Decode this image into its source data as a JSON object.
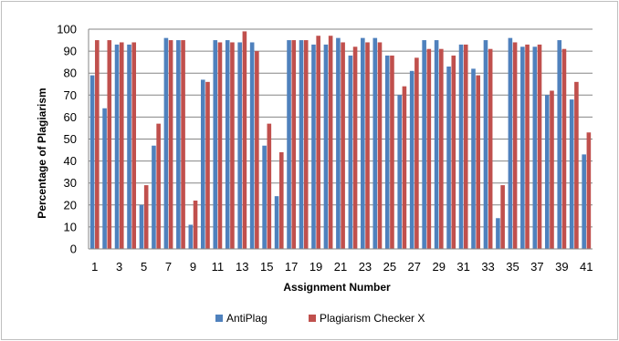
{
  "chart_data": {
    "type": "bar",
    "xlabel": "Assignment Number",
    "ylabel": "Percentage of Plagiarism",
    "ylim": [
      0,
      100
    ],
    "yticks": [
      0,
      10,
      20,
      30,
      40,
      50,
      60,
      70,
      80,
      90,
      100
    ],
    "xtick_labels": [
      "1",
      "3",
      "5",
      "7",
      "9",
      "11",
      "13",
      "15",
      "17",
      "19",
      "21",
      "23",
      "25",
      "27",
      "29",
      "31",
      "33",
      "35",
      "37",
      "39",
      "41"
    ],
    "categories": [
      1,
      2,
      3,
      4,
      5,
      6,
      7,
      8,
      9,
      10,
      11,
      12,
      13,
      14,
      15,
      16,
      17,
      18,
      19,
      20,
      21,
      22,
      23,
      24,
      25,
      26,
      27,
      28,
      29,
      30,
      31,
      32,
      33,
      34,
      35,
      36,
      37,
      38,
      39,
      40,
      41
    ],
    "grid": true,
    "legend_position": "bottom",
    "series": [
      {
        "name": "AntiPlag",
        "color": "#4f81bd",
        "values": [
          79,
          64,
          93,
          93,
          20,
          47,
          96,
          95,
          11,
          77,
          95,
          95,
          94,
          94,
          47,
          24,
          95,
          95,
          93,
          93,
          96,
          88,
          96,
          96,
          88,
          70,
          81,
          95,
          95,
          83,
          93,
          82,
          95,
          14,
          96,
          92,
          92,
          70,
          95,
          68,
          43
        ]
      },
      {
        "name": "Plagiarism Checker X",
        "color": "#c0504d",
        "values": [
          95,
          95,
          94,
          94,
          29,
          57,
          95,
          95,
          22,
          76,
          94,
          94,
          99,
          90,
          57,
          44,
          95,
          95,
          97,
          97,
          94,
          92,
          94,
          94,
          88,
          74,
          87,
          91,
          91,
          88,
          93,
          79,
          91,
          29,
          94,
          93,
          93,
          72,
          91,
          76,
          53
        ]
      }
    ]
  }
}
